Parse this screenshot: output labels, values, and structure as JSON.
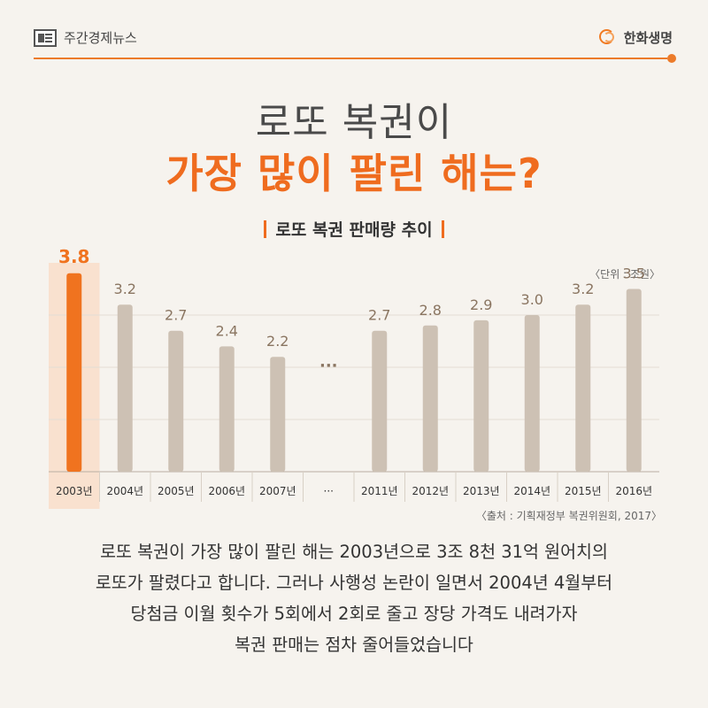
{
  "header": {
    "left_brand": "주간경제뉴스",
    "right_brand": "한화생명",
    "accent_color": "#ec7b2a"
  },
  "title": {
    "line1": "로또 복권이",
    "line2": "가장 많이 팔린 해는?"
  },
  "subtitle": "로또 복권 판매량 추이",
  "chart_data": {
    "type": "bar",
    "title": "로또 복권 판매량 추이",
    "unit_label": "〈단위 : 조원〉",
    "source_label": "〈출처 : 기획재정부 복권위원회, 2017〉",
    "categories": [
      "2003년",
      "2004년",
      "2005년",
      "2006년",
      "2007년",
      "···",
      "2011년",
      "2012년",
      "2013년",
      "2014년",
      "2015년",
      "2016년"
    ],
    "values": [
      3.8,
      3.2,
      2.7,
      2.4,
      2.2,
      null,
      2.7,
      2.8,
      2.9,
      3.0,
      3.2,
      3.5
    ],
    "value_labels": [
      "3.8",
      "3.2",
      "2.7",
      "2.4",
      "2.2",
      "···",
      "2.7",
      "2.8",
      "2.9",
      "3.0",
      "3.2",
      "3.5"
    ],
    "highlight_index": 0,
    "ylim": [
      0,
      4
    ],
    "grid": true,
    "colors": {
      "highlight": "#f0731f",
      "highlight_bg": "#f9e1cf",
      "bar": "#cdc1b4",
      "label": "#8a7561",
      "highlight_label": "#f0731f"
    }
  },
  "body_lines": [
    "로또 복권이 가장 많이 팔린 해는 2003년으로 3조 8천 31억 원어치의",
    "로또가 팔렸다고 합니다. 그러나 사행성 논란이 일면서 2004년  4월부터",
    "당첨금 이월 횟수가 5회에서 2회로 줄고 장당 가격도 내려가자",
    "복권 판매는 점차 줄어들었습니다"
  ]
}
